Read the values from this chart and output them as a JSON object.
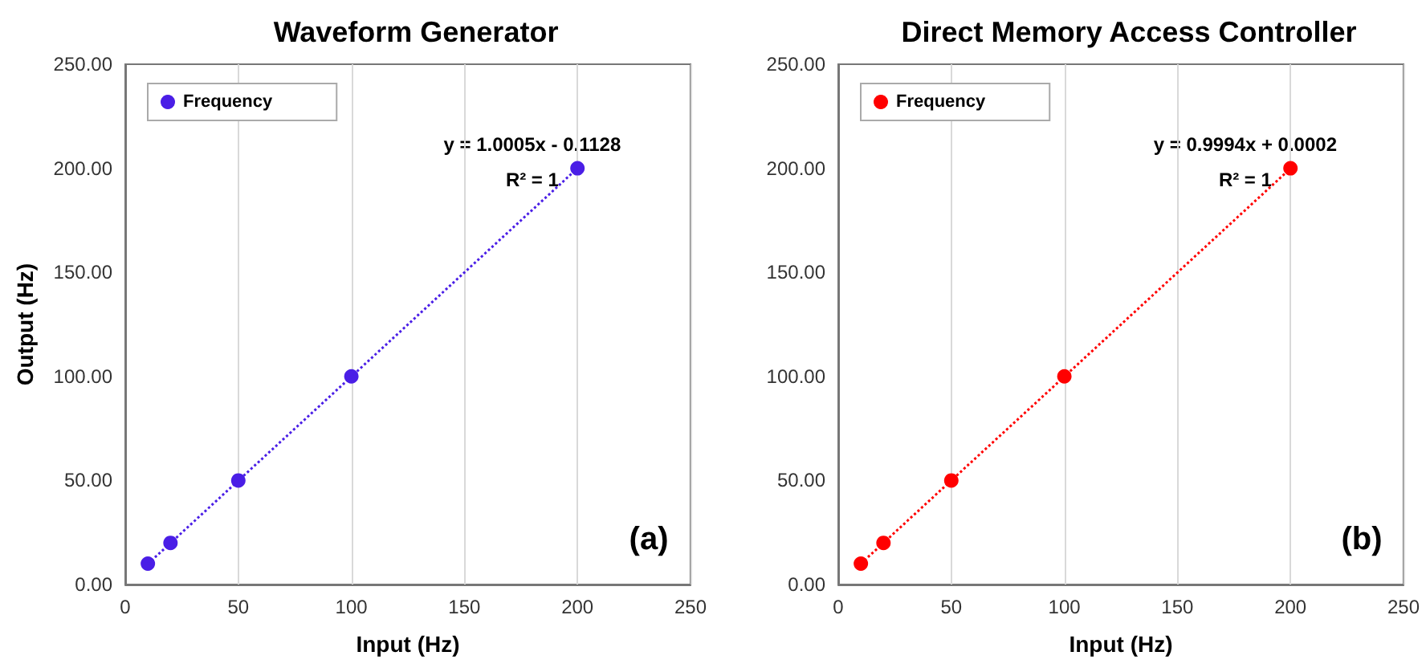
{
  "chart_data": [
    {
      "type": "scatter",
      "title": "Waveform Generator",
      "xlabel": "Input (Hz)",
      "ylabel": "Output (Hz)",
      "x": [
        10,
        20,
        50,
        100,
        200
      ],
      "series": [
        {
          "name": "Frequency",
          "color": "#4a1ee6",
          "values": [
            10,
            20,
            50,
            100,
            200
          ]
        },
        {
          "type": "line",
          "values": [
            9.9,
            19.9,
            49.9,
            99.9,
            200.0
          ],
          "color": "#4a1ee6",
          "line_style": "dotted",
          "marker": "none"
        }
      ],
      "xlim": [
        0,
        250
      ],
      "xticks": [
        0,
        50,
        100,
        150,
        200,
        250
      ],
      "ylim": [
        0,
        250
      ],
      "yticks": [
        {
          "value": 0,
          "label": "0.00"
        },
        {
          "value": 50,
          "label": "50.00"
        },
        {
          "value": 100,
          "label": "100.00"
        },
        {
          "value": 150,
          "label": "150.00"
        },
        {
          "value": 200,
          "label": "200.00"
        },
        {
          "value": 250,
          "label": "250.00"
        }
      ],
      "grid": "x",
      "legend": "top left",
      "marker": "circle",
      "annotations": [
        "y = 1.0005x - 0.1128",
        "R² = 1",
        "(a)"
      ]
    },
    {
      "type": "scatter",
      "title": "Direct Memory Access Controller",
      "xlabel": "Input (Hz)",
      "x": [
        10,
        20,
        50,
        100,
        200
      ],
      "series": [
        {
          "name": "Frequency",
          "color": "#ff0000",
          "values": [
            10,
            20,
            50,
            100,
            200
          ]
        },
        {
          "type": "line",
          "values": [
            10.0,
            20.0,
            50.0,
            99.9,
            199.9
          ],
          "color": "#ff0000",
          "line_style": "dotted",
          "marker": "none"
        }
      ],
      "xlim": [
        0,
        250
      ],
      "xticks": [
        0,
        50,
        100,
        150,
        200,
        250
      ],
      "ylim": [
        0,
        250
      ],
      "yticks": [
        {
          "value": 0,
          "label": "0.00"
        },
        {
          "value": 50,
          "label": "50.00"
        },
        {
          "value": 100,
          "label": "100.00"
        },
        {
          "value": 150,
          "label": "150.00"
        },
        {
          "value": 200,
          "label": "200.00"
        },
        {
          "value": 250,
          "label": "250.00"
        }
      ],
      "grid": "x",
      "legend": "top left",
      "marker": "circle",
      "annotations": [
        "y = 0.9994x + 0.0002",
        "R² = 1",
        "(b)"
      ]
    }
  ]
}
